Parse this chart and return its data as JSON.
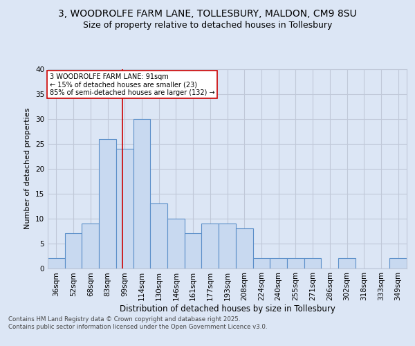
{
  "title_line1": "3, WOODROLFE FARM LANE, TOLLESBURY, MALDON, CM9 8SU",
  "title_line2": "Size of property relative to detached houses in Tollesbury",
  "xlabel": "Distribution of detached houses by size in Tollesbury",
  "ylabel": "Number of detached properties",
  "categories": [
    "36sqm",
    "52sqm",
    "68sqm",
    "83sqm",
    "99sqm",
    "114sqm",
    "130sqm",
    "146sqm",
    "161sqm",
    "177sqm",
    "193sqm",
    "208sqm",
    "224sqm",
    "240sqm",
    "255sqm",
    "271sqm",
    "286sqm",
    "302sqm",
    "318sqm",
    "333sqm",
    "349sqm"
  ],
  "values": [
    2,
    7,
    9,
    26,
    24,
    30,
    13,
    10,
    7,
    9,
    9,
    8,
    2,
    2,
    2,
    2,
    0,
    2,
    0,
    0,
    2
  ],
  "bar_color": "#c8d9f0",
  "bar_edge_color": "#5b8fc9",
  "grid_color": "#c0c8d8",
  "background_color": "#dce6f5",
  "vline_x": 3.85,
  "vline_color": "#cc0000",
  "annotation_text": "3 WOODROLFE FARM LANE: 91sqm\n← 15% of detached houses are smaller (23)\n85% of semi-detached houses are larger (132) →",
  "annotation_box_color": "#ffffff",
  "annotation_box_edge": "#cc0000",
  "footnote": "Contains HM Land Registry data © Crown copyright and database right 2025.\nContains public sector information licensed under the Open Government Licence v3.0.",
  "ylim": [
    0,
    40
  ],
  "yticks": [
    0,
    5,
    10,
    15,
    20,
    25,
    30,
    35,
    40
  ]
}
